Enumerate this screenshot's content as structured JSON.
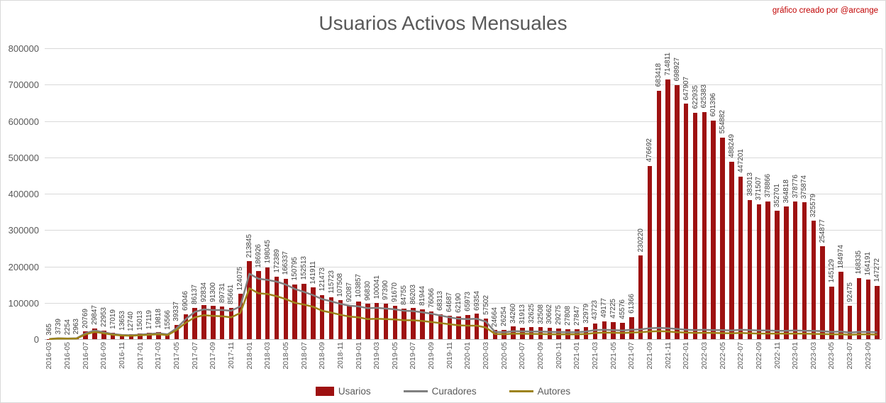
{
  "page": {
    "credit": "gráfico creado por @arcange"
  },
  "chart_data": {
    "type": "bar",
    "title": "Usuarios Activos Mensuales",
    "xlabel": "",
    "ylabel": "",
    "ylim": [
      0,
      800000
    ],
    "y_ticks": [
      0,
      100000,
      200000,
      300000,
      400000,
      500000,
      600000,
      700000,
      800000
    ],
    "x_tick_every": 2,
    "grid": "horizontal",
    "legend_position": "bottom",
    "bar_labels_rotated": true,
    "categories": [
      "2016-03",
      "2016-04",
      "2016-05",
      "2016-06",
      "2016-07",
      "2016-08",
      "2016-09",
      "2016-10",
      "2016-11",
      "2016-12",
      "2017-01",
      "2017-02",
      "2017-03",
      "2017-04",
      "2017-05",
      "2017-06",
      "2017-07",
      "2017-08",
      "2017-09",
      "2017-10",
      "2017-11",
      "2017-12",
      "2018-01",
      "2018-02",
      "2018-03",
      "2018-04",
      "2018-05",
      "2018-06",
      "2018-07",
      "2018-08",
      "2018-09",
      "2018-10",
      "2018-11",
      "2018-12",
      "2019-01",
      "2019-02",
      "2019-03",
      "2019-04",
      "2019-05",
      "2019-06",
      "2019-07",
      "2019-08",
      "2019-09",
      "2019-10",
      "2019-11",
      "2019-12",
      "2020-01",
      "2020-02",
      "2020-03",
      "2020-04",
      "2020-05",
      "2020-06",
      "2020-07",
      "2020-08",
      "2020-09",
      "2020-10",
      "2020-11",
      "2020-12",
      "2021-01",
      "2021-02",
      "2021-03",
      "2021-04",
      "2021-05",
      "2021-06",
      "2021-07",
      "2021-08",
      "2021-09",
      "2021-10",
      "2021-11",
      "2021-12",
      "2022-01",
      "2022-02",
      "2022-03",
      "2022-04",
      "2022-05",
      "2022-06",
      "2022-07",
      "2022-08",
      "2022-09",
      "2022-10",
      "2022-11",
      "2022-12",
      "2023-01",
      "2023-02",
      "2023-03",
      "2023-04",
      "2023-05",
      "2023-06",
      "2023-07",
      "2023-08",
      "2023-09",
      "2023-10"
    ],
    "series": [
      {
        "name": "Usarios",
        "type": "bar",
        "color": "#9E1111",
        "values": [
          365,
          3739,
          2254,
          2963,
          20769,
          29847,
          22953,
          17019,
          13653,
          12740,
          15013,
          17119,
          19818,
          15566,
          39337,
          69046,
          86137,
          92834,
          91300,
          89731,
          85661,
          124075,
          213845,
          186926,
          198045,
          172389,
          166337,
          150795,
          152513,
          141911,
          121473,
          115723,
          107508,
          92087,
          103857,
          96830,
          100041,
          97390,
          91670,
          84755,
          86203,
          81944,
          76066,
          68313,
          64687,
          62190,
          65973,
          69354,
          57502,
          24664,
          26254,
          34260,
          31913,
          32625,
          32508,
          30662,
          29275,
          27808,
          27847,
          32979,
          43723,
          49177,
          47225,
          45576,
          61366,
          230220,
          476692,
          683418,
          714811,
          698927,
          647907,
          622935,
          625383,
          601396,
          554882,
          488249,
          447201,
          383013,
          371507,
          378866,
          352701,
          364818,
          378776,
          375874,
          325579,
          254877,
          145129,
          184974,
          92475,
          168335,
          164191,
          147272
        ]
      },
      {
        "name": "Curadores",
        "type": "line",
        "color": "#808080",
        "values_estimated": true,
        "values": [
          300,
          2500,
          1800,
          2300,
          16000,
          24000,
          19000,
          14000,
          11500,
          10800,
          12500,
          14000,
          16000,
          13000,
          30000,
          55000,
          75000,
          82000,
          80000,
          80000,
          78000,
          90000,
          180000,
          166000,
          163000,
          158000,
          150000,
          138000,
          130000,
          121000,
          110000,
          104000,
          97000,
          92000,
          90000,
          85000,
          86000,
          84000,
          82000,
          78000,
          77000,
          74000,
          70000,
          65000,
          60000,
          56000,
          55000,
          56000,
          48000,
          20000,
          19000,
          22000,
          21500,
          21000,
          21000,
          20000,
          19500,
          19000,
          19000,
          21000,
          25000,
          26000,
          25000,
          24000,
          26000,
          27000,
          30000,
          31000,
          30000,
          28000,
          26000,
          25000,
          26000,
          25000,
          25000,
          24000,
          26000,
          25000,
          24000,
          24000,
          23000,
          23000,
          24000,
          23000,
          23000,
          22000,
          20000,
          21000,
          18000,
          20000,
          20000,
          19000
        ]
      },
      {
        "name": "Autores",
        "type": "line",
        "color": "#9D8319",
        "values_estimated": true,
        "values": [
          200,
          1800,
          1300,
          1700,
          13000,
          20000,
          16000,
          12000,
          10000,
          9300,
          10800,
          12000,
          13500,
          11000,
          25000,
          45000,
          60000,
          66000,
          64000,
          63000,
          60000,
          72000,
          140000,
          126000,
          124000,
          118000,
          110000,
          100000,
          95000,
          89000,
          78000,
          73000,
          67000,
          62000,
          60000,
          55000,
          56000,
          55000,
          54000,
          52000,
          52000,
          50000,
          47000,
          44000,
          41000,
          38000,
          37000,
          37000,
          32000,
          14000,
          13500,
          15000,
          14800,
          14500,
          14000,
          13500,
          13000,
          13000,
          13000,
          14000,
          17000,
          18000,
          17500,
          17000,
          18000,
          19000,
          21000,
          22000,
          21000,
          19000,
          18000,
          17000,
          17500,
          17000,
          16500,
          16000,
          17000,
          16000,
          15500,
          15500,
          15000,
          15000,
          15500,
          15000,
          14500,
          14000,
          13000,
          13500,
          12000,
          13000,
          13000,
          12500
        ]
      }
    ]
  },
  "colors": {
    "bar": "#9E1111",
    "curadores_line": "#808080",
    "autores_line": "#9D8319",
    "title_text": "#595959",
    "axis_text": "#595959",
    "bar_label_text": "#404040",
    "credit_text": "#C00000",
    "gridline": "#D9D9D9",
    "axisline": "#BFBFBF"
  }
}
